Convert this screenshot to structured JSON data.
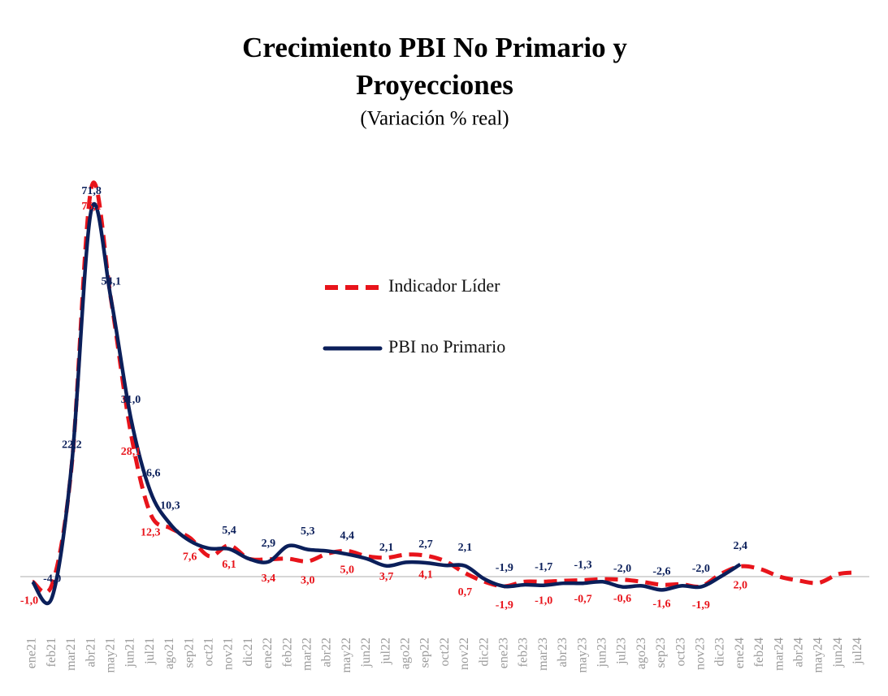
{
  "chart_data": {
    "type": "line",
    "title": "Crecimiento PBI No Primario y Proyecciones",
    "subtitle": "(Variación % real)",
    "categories": [
      "ene21",
      "feb21",
      "mar21",
      "abr21",
      "may21",
      "jun21",
      "jul21",
      "ago21",
      "sep21",
      "oct21",
      "nov21",
      "dic21",
      "ene22",
      "feb22",
      "mar22",
      "abr22",
      "may22",
      "jun22",
      "jul22",
      "ago22",
      "sep22",
      "oct22",
      "nov22",
      "dic22",
      "ene23",
      "feb23",
      "mar23",
      "abr23",
      "may23",
      "jun23",
      "jul23",
      "ago23",
      "sep23",
      "oct23",
      "nov23",
      "dic23",
      "ene24",
      "feb24",
      "mar24",
      "abr24",
      "may24",
      "jun24",
      "jul24"
    ],
    "ylim": [
      -10,
      80
    ],
    "legend": "center",
    "series": [
      {
        "name": "Indicador Líder",
        "color": "#e8141b",
        "dash": true,
        "values": [
          -1.0,
          -1.5,
          22.0,
          76.1,
          54.0,
          28.1,
          12.3,
          9.5,
          7.6,
          4.0,
          6.1,
          3.5,
          3.4,
          3.5,
          3.0,
          4.5,
          5.0,
          4.0,
          3.7,
          4.3,
          4.1,
          3.0,
          0.7,
          -1.0,
          -1.9,
          -1.0,
          -1.0,
          -0.8,
          -0.7,
          -0.5,
          -0.6,
          -1.0,
          -1.6,
          -1.5,
          -1.9,
          0.5,
          2.0,
          1.5,
          0.0,
          -0.8,
          -1.2,
          0.5,
          0.8
        ],
        "value_labels": [
          "-1,0",
          null,
          null,
          "76,1",
          null,
          "28,1",
          "12,3",
          null,
          "7,6",
          null,
          "6,1",
          null,
          "3,4",
          null,
          "3,0",
          null,
          "5,0",
          null,
          "3,7",
          null,
          "4,1",
          null,
          "0,7",
          null,
          "-1,9",
          null,
          "-1,0",
          null,
          "-0,7",
          null,
          "-0,6",
          null,
          "-1,6",
          null,
          "-1,9",
          null,
          "2,0",
          null,
          null,
          null,
          null,
          null,
          null
        ]
      },
      {
        "name": "PBI no Primario",
        "color": "#0b1f5a",
        "dash": false,
        "values": [
          -1.0,
          -4.0,
          22.2,
          71.8,
          54.1,
          31.0,
          16.6,
          10.3,
          7.0,
          5.5,
          5.4,
          3.5,
          2.9,
          6.0,
          5.3,
          5.0,
          4.4,
          3.5,
          2.1,
          2.8,
          2.7,
          2.2,
          2.1,
          -0.5,
          -1.9,
          -1.6,
          -1.7,
          -1.3,
          -1.3,
          -1.0,
          -2.0,
          -1.8,
          -2.6,
          -1.8,
          -2.0,
          0.0,
          2.4,
          null,
          null,
          null,
          null,
          null,
          null
        ],
        "value_labels": [
          null,
          "-4,0",
          "22,2",
          "71,8",
          "54,1",
          "31,0",
          "16,6",
          "10,3",
          null,
          null,
          "5,4",
          null,
          "2,9",
          null,
          "5,3",
          null,
          "4,4",
          null,
          "2,1",
          null,
          "2,7",
          null,
          "2,1",
          null,
          "-1,9",
          null,
          "-1,7",
          null,
          "-1,3",
          null,
          "-2,0",
          null,
          "-2,6",
          null,
          "-2,0",
          null,
          "2,4",
          null,
          null,
          null,
          null,
          null,
          null
        ]
      }
    ]
  }
}
